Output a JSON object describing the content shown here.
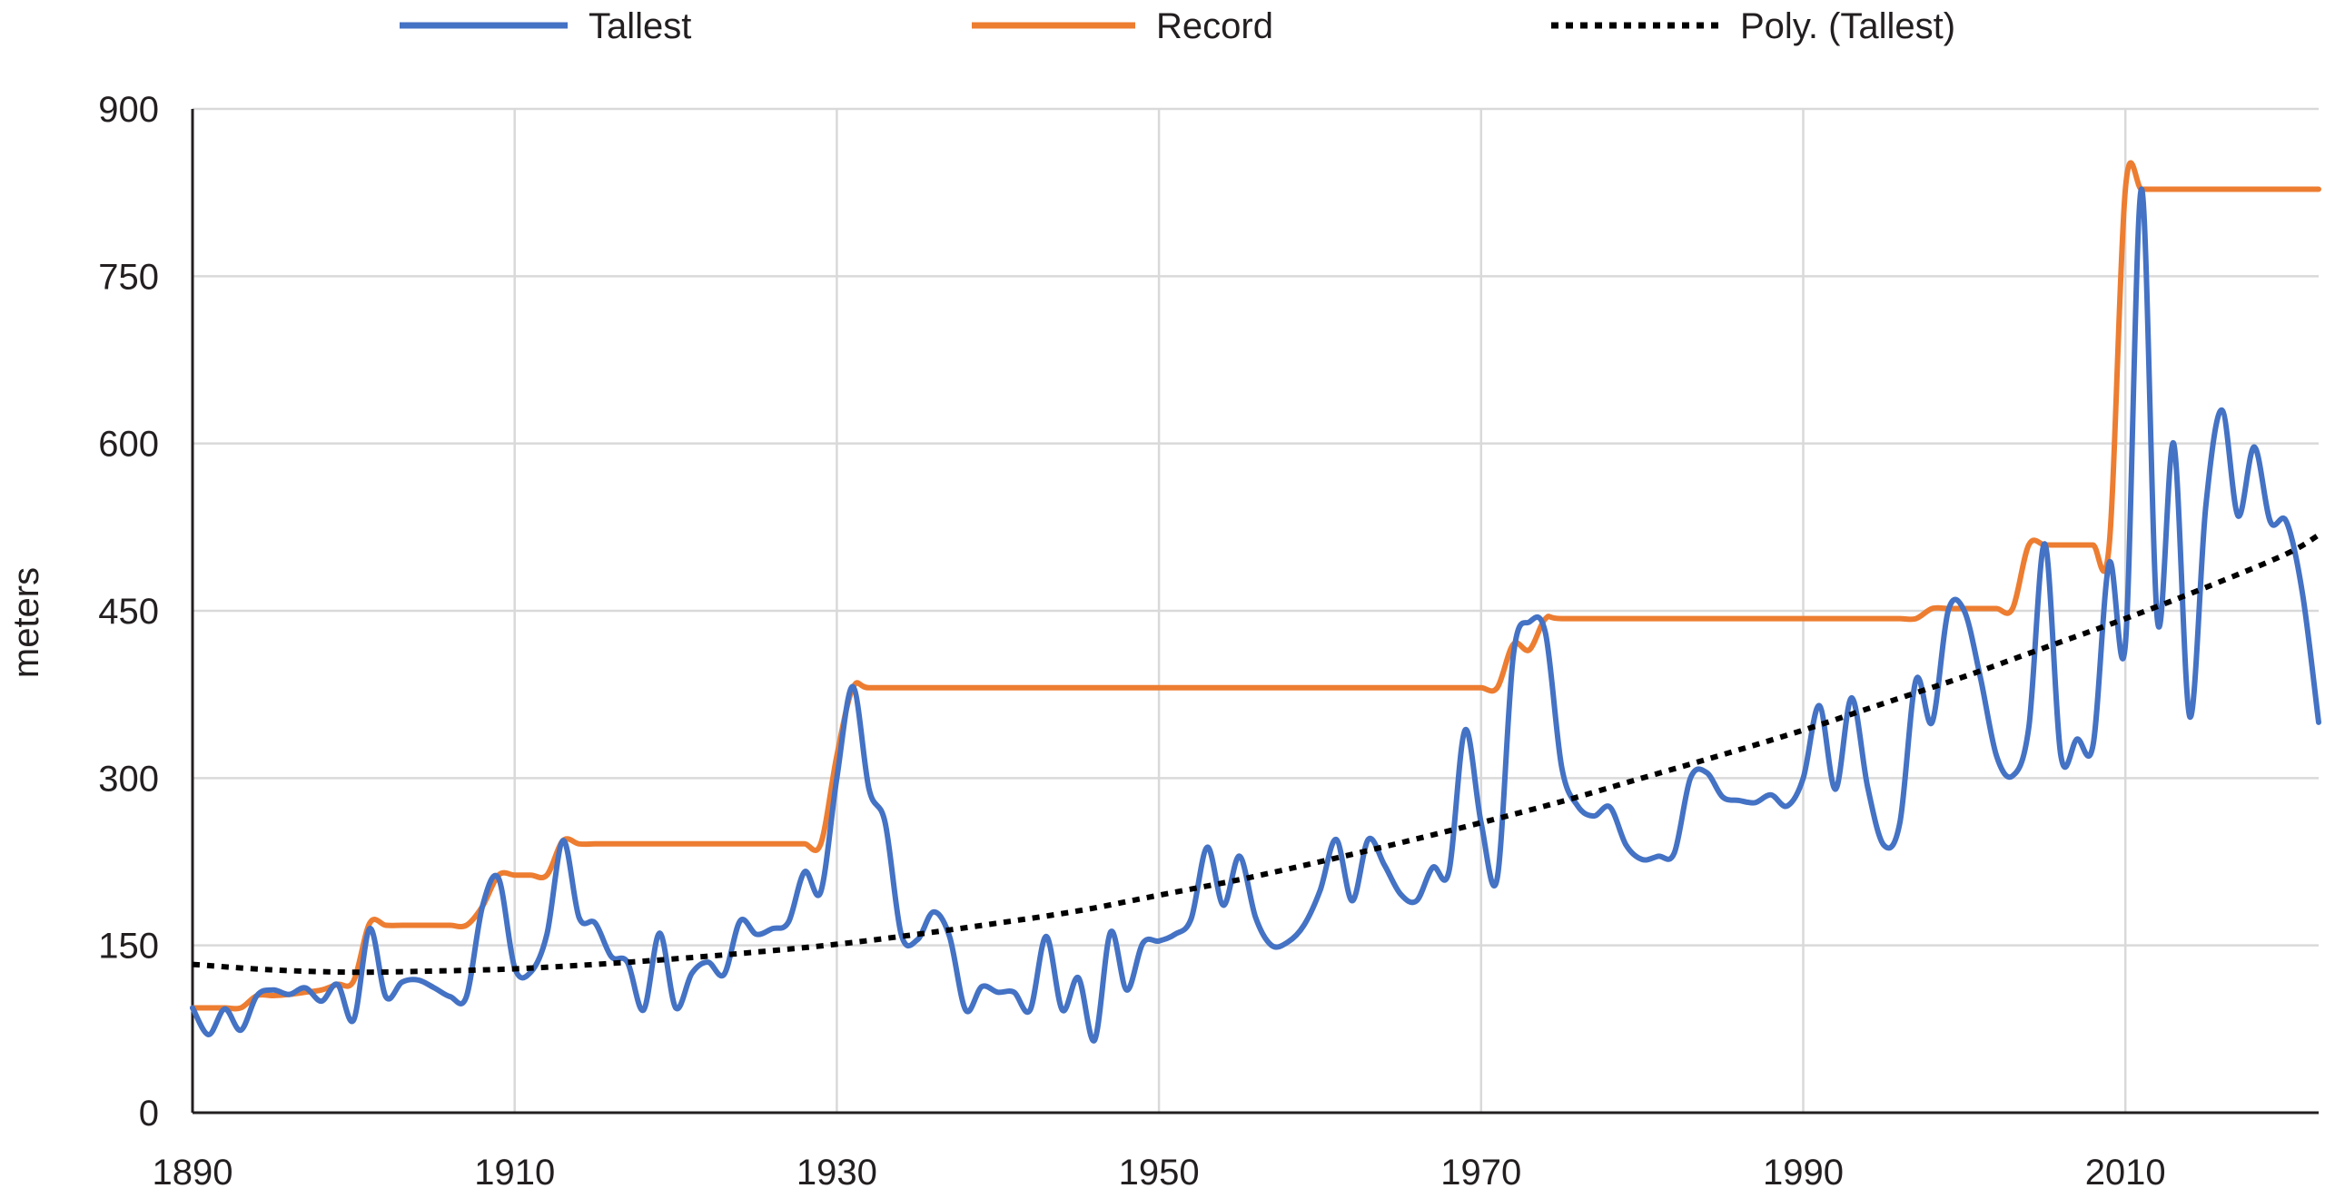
{
  "chart_data": {
    "type": "line",
    "title": "",
    "xlabel": "",
    "ylabel": "meters",
    "xlim": [
      1890,
      2022
    ],
    "ylim": [
      0,
      900
    ],
    "x_ticks": [
      1890,
      1910,
      1930,
      1950,
      1970,
      1990,
      2010
    ],
    "y_ticks": [
      0,
      150,
      300,
      450,
      600,
      750,
      900
    ],
    "x_tick_labels": [
      "1890",
      "1910",
      "1930",
      "1950",
      "1970",
      "1990",
      "2010"
    ],
    "y_tick_labels": [
      "0",
      "150",
      "300",
      "450",
      "600",
      "750",
      "900"
    ],
    "grid": true,
    "legend_position": "top",
    "series": [
      {
        "name": "Tallest",
        "color": "#4472c4",
        "style": "solid",
        "x": [
          1890,
          1891,
          1892,
          1893,
          1894,
          1895,
          1896,
          1897,
          1898,
          1899,
          1900,
          1901,
          1902,
          1903,
          1904,
          1905,
          1906,
          1907,
          1908,
          1909,
          1910,
          1911,
          1912,
          1913,
          1914,
          1915,
          1916,
          1917,
          1918,
          1919,
          1920,
          1921,
          1922,
          1923,
          1924,
          1925,
          1926,
          1927,
          1928,
          1929,
          1930,
          1931,
          1932,
          1933,
          1934,
          1935,
          1936,
          1937,
          1938,
          1939,
          1940,
          1941,
          1942,
          1943,
          1944,
          1945,
          1946,
          1947,
          1948,
          1949,
          1950,
          1951,
          1952,
          1953,
          1954,
          1955,
          1956,
          1957,
          1958,
          1959,
          1960,
          1961,
          1962,
          1963,
          1964,
          1965,
          1966,
          1967,
          1968,
          1969,
          1970,
          1971,
          1972,
          1973,
          1974,
          1975,
          1976,
          1977,
          1978,
          1979,
          1980,
          1981,
          1982,
          1983,
          1984,
          1985,
          1986,
          1987,
          1988,
          1989,
          1990,
          1991,
          1992,
          1993,
          1994,
          1995,
          1996,
          1997,
          1998,
          1999,
          2000,
          2001,
          2002,
          2003,
          2004,
          2005,
          2006,
          2007,
          2008,
          2009,
          2010,
          2011,
          2012,
          2013,
          2014,
          2015,
          2016,
          2017,
          2018,
          2019,
          2020,
          2021,
          2022
        ],
        "values": [
          94,
          70,
          93,
          74,
          105,
          110,
          106,
          112,
          100,
          115,
          83,
          165,
          104,
          117,
          119,
          112,
          104,
          104,
          185,
          210,
          130,
          126,
          160,
          244,
          175,
          170,
          140,
          135,
          92,
          161,
          94,
          125,
          135,
          124,
          172,
          160,
          165,
          171,
          216,
          198,
          300,
          382,
          290,
          260,
          160,
          155,
          180,
          158,
          92,
          113,
          108,
          108,
          92,
          158,
          92,
          121,
          65,
          162,
          110,
          152,
          154,
          160,
          174,
          238,
          186,
          230,
          175,
          150,
          153,
          168,
          199,
          245,
          190,
          245,
          222,
          196,
          190,
          220,
          216,
          343,
          260,
          210,
          410,
          440,
          430,
          310,
          275,
          266,
          274,
          240,
          227,
          230,
          233,
          300,
          305,
          283,
          280,
          278,
          285,
          275,
          300,
          365,
          290,
          372,
          292,
          240,
          260,
          388,
          350,
          450,
          450,
          390,
          320,
          302,
          345,
          510,
          320,
          335,
          330,
          493,
          420,
          828,
          440,
          600,
          355,
          545,
          630,
          535,
          597,
          530,
          530,
          465,
          350
        ]
      },
      {
        "name": "Record",
        "color": "#ed7d31",
        "style": "solid",
        "x": [
          1890,
          1891,
          1892,
          1893,
          1894,
          1895,
          1896,
          1897,
          1898,
          1899,
          1900,
          1901,
          1902,
          1903,
          1904,
          1905,
          1906,
          1907,
          1908,
          1909,
          1910,
          1911,
          1912,
          1913,
          1914,
          1915,
          1916,
          1917,
          1918,
          1919,
          1920,
          1921,
          1922,
          1923,
          1924,
          1925,
          1926,
          1927,
          1928,
          1929,
          1930,
          1931,
          1932,
          1935,
          1940,
          1945,
          1950,
          1955,
          1960,
          1965,
          1968,
          1969,
          1970,
          1971,
          1972,
          1973,
          1974,
          1975,
          1980,
          1985,
          1990,
          1995,
          1996,
          1997,
          1998,
          1999,
          2000,
          2001,
          2002,
          2003,
          2004,
          2005,
          2006,
          2007,
          2008,
          2009,
          2010,
          2011,
          2012,
          2015,
          2020,
          2022
        ],
        "values": [
          94,
          94,
          94,
          94,
          105,
          105,
          106,
          108,
          110,
          115,
          118,
          170,
          168,
          168,
          168,
          168,
          168,
          168,
          185,
          213,
          213,
          213,
          213,
          244,
          241,
          241,
          241,
          241,
          241,
          241,
          241,
          241,
          241,
          241,
          241,
          241,
          241,
          241,
          241,
          241,
          320,
          381,
          381,
          381,
          381,
          381,
          381,
          381,
          381,
          381,
          381,
          381,
          381,
          381,
          420,
          415,
          443,
          443,
          443,
          443,
          443,
          443,
          443,
          443,
          452,
          452,
          452,
          452,
          452,
          452,
          509,
          509,
          509,
          509,
          509,
          509,
          828,
          828,
          828,
          828,
          828,
          828
        ]
      },
      {
        "name": "Poly. (Tallest)",
        "color": "#000000",
        "style": "dotted",
        "x": [
          1890,
          1895,
          1900,
          1905,
          1910,
          1915,
          1920,
          1925,
          1930,
          1935,
          1940,
          1945,
          1950,
          1955,
          1960,
          1965,
          1970,
          1975,
          1980,
          1985,
          1990,
          1995,
          2000,
          2005,
          2010,
          2015,
          2020,
          2022
        ],
        "values": [
          133,
          128,
          126,
          127,
          129,
          133,
          138,
          144,
          151,
          160,
          170,
          181,
          195,
          209,
          225,
          242,
          260,
          279,
          300,
          321,
          343,
          367,
          391,
          417,
          443,
          471,
          501,
          518
        ]
      }
    ]
  }
}
